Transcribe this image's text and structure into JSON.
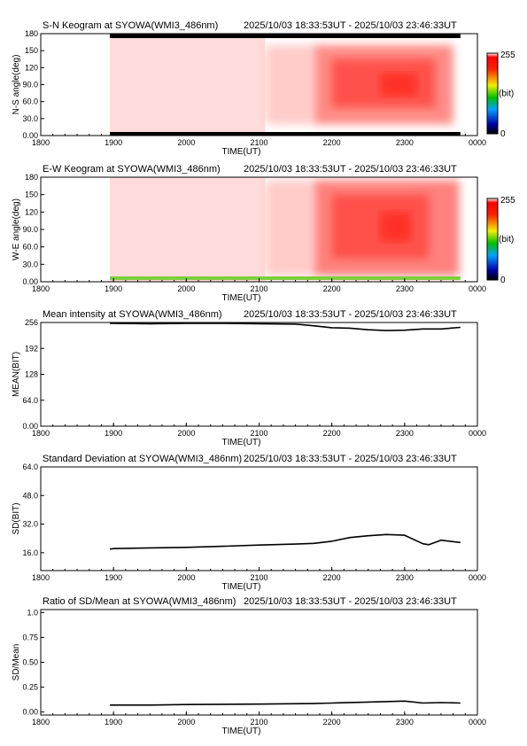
{
  "chart_data": [
    {
      "type": "heatmap",
      "title_left": "S-N Keogram at SYOWA(WMI3_486nm)",
      "title_right": "2025/10/03 18:33:53UT - 2025/10/03 23:46:33UT",
      "xlabel": "TIME(UT)",
      "ylabel": "N-S angle(deg)",
      "x_ticks": [
        "1800",
        "1900",
        "2000",
        "2100",
        "2200",
        "2300",
        "0000"
      ],
      "y_ticks": [
        "0.00",
        "30.0",
        "60.0",
        "90.0",
        "120",
        "150",
        "180"
      ],
      "ylim": [
        0,
        180
      ],
      "colorbar": {
        "max": "255",
        "unit": "(bit)",
        "min": "0"
      },
      "regions": [
        {
          "t_start": 1857,
          "t_end": 2105,
          "angle_low": 0,
          "angle_high": 180,
          "level": 20
        },
        {
          "t_start": 2105,
          "t_end": 2145,
          "angle_low": 20,
          "angle_high": 160,
          "level": 40
        },
        {
          "t_start": 2145,
          "t_end": 2340,
          "angle_low": 20,
          "angle_high": 160,
          "level": 110
        },
        {
          "t_start": 2200,
          "t_end": 2325,
          "angle_low": 50,
          "angle_high": 135,
          "level": 160
        },
        {
          "t_start": 2240,
          "t_end": 2310,
          "angle_low": 70,
          "angle_high": 110,
          "level": 190
        }
      ]
    },
    {
      "type": "heatmap",
      "title_left": "E-W Keogram at SYOWA(WMI3_486nm)",
      "title_right": "2025/10/03 18:33:53UT - 2025/10/03 23:46:33UT",
      "xlabel": "TIME(UT)",
      "ylabel": "W-E angle(deg)",
      "x_ticks": [
        "1800",
        "1900",
        "2000",
        "2100",
        "2200",
        "2300",
        "0000"
      ],
      "y_ticks": [
        "0.00",
        "30.0",
        "60.0",
        "90.0",
        "120",
        "150",
        "180"
      ],
      "ylim": [
        0,
        180
      ],
      "colorbar": {
        "max": "255",
        "unit": "(bit)",
        "min": "0"
      },
      "regions": [
        {
          "t_start": 1857,
          "t_end": 2105,
          "angle_low": 0,
          "angle_high": 180,
          "level": 20
        },
        {
          "t_start": 2105,
          "t_end": 2145,
          "angle_low": 10,
          "angle_high": 175,
          "level": 40
        },
        {
          "t_start": 2145,
          "t_end": 2345,
          "angle_low": 10,
          "angle_high": 175,
          "level": 120
        },
        {
          "t_start": 2200,
          "t_end": 2320,
          "angle_low": 40,
          "angle_high": 150,
          "level": 160
        },
        {
          "t_start": 2240,
          "t_end": 2305,
          "angle_low": 70,
          "angle_high": 120,
          "level": 190
        }
      ]
    },
    {
      "type": "line",
      "title_left": "Mean intensity at SYOWA(WMI3_486nm)",
      "title_right": "2025/10/03 18:33:53UT - 2025/10/03 23:46:33UT",
      "xlabel": "TIME(UT)",
      "ylabel": "MEAN(BIT)",
      "x_ticks": [
        "1800",
        "1900",
        "2000",
        "2100",
        "2200",
        "2300",
        "0000"
      ],
      "y_ticks": [
        "0.00",
        "64.0",
        "128",
        "192",
        "256"
      ],
      "ylim": [
        0,
        256
      ],
      "x": [
        1857,
        1900,
        1930,
        2000,
        2030,
        2100,
        2130,
        2145,
        2200,
        2215,
        2230,
        2245,
        2300,
        2315,
        2330,
        2346
      ],
      "y": [
        254,
        254,
        253,
        254,
        254,
        253,
        252,
        248,
        243,
        242,
        238,
        236,
        237,
        240,
        240,
        244
      ]
    },
    {
      "type": "line",
      "title_left": "Standard Deviation at SYOWA(WMI3_486nm)",
      "title_right": "2025/10/03 18:33:53UT - 2025/10/03 23:46:33UT",
      "xlabel": "TIME(UT)",
      "ylabel": "SD(BIT)",
      "x_ticks": [
        "1800",
        "1900",
        "2000",
        "2100",
        "2200",
        "2300",
        "0000"
      ],
      "y_ticks": [
        "16.0",
        "32.0",
        "48.0",
        "64.0"
      ],
      "ylim": [
        6,
        64
      ],
      "x": [
        1857,
        1900,
        1930,
        2000,
        2030,
        2100,
        2130,
        2145,
        2200,
        2215,
        2230,
        2245,
        2300,
        2315,
        2320,
        2330,
        2346
      ],
      "y": [
        18.0,
        18.3,
        18.7,
        19.0,
        19.6,
        20.3,
        20.8,
        21.2,
        22.4,
        24.5,
        25.5,
        26.2,
        25.8,
        21.0,
        20.5,
        23.0,
        21.7
      ]
    },
    {
      "type": "line",
      "title_left": "Ratio of SD/Mean at SYOWA(WMI3_486nm)",
      "title_right": "2025/10/03 18:33:53UT - 2025/10/03 23:46:33UT",
      "xlabel": "TIME(UT)",
      "ylabel": "SD/Mean",
      "x_ticks": [
        "1800",
        "1900",
        "2000",
        "2100",
        "2200",
        "2300",
        "0000"
      ],
      "y_ticks": [
        "0.00",
        "0.25",
        "0.50",
        "0.75",
        "1.0"
      ],
      "ylim": [
        -0.03,
        1.03
      ],
      "x": [
        1857,
        1930,
        2000,
        2100,
        2145,
        2200,
        2230,
        2300,
        2315,
        2330,
        2346
      ],
      "y": [
        0.07,
        0.07,
        0.075,
        0.08,
        0.085,
        0.09,
        0.1,
        0.11,
        0.09,
        0.095,
        0.09
      ]
    }
  ]
}
